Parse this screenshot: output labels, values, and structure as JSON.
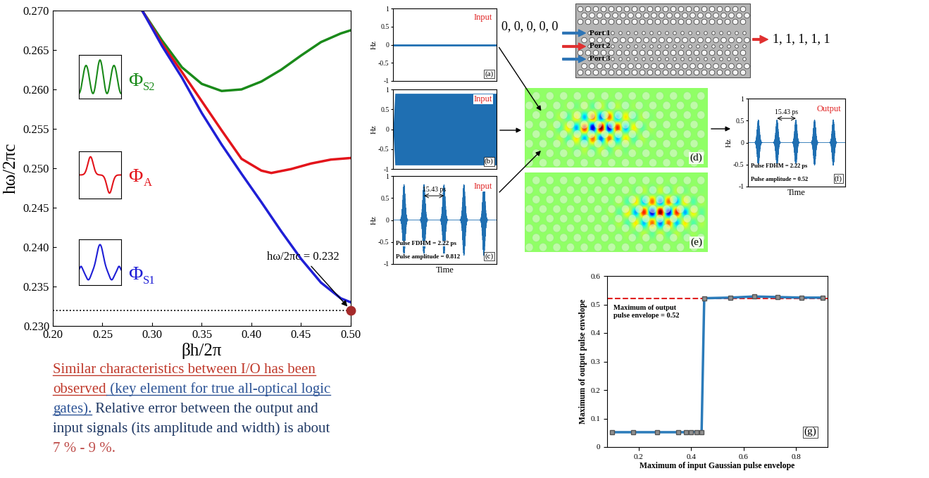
{
  "chart_data": [
    {
      "type": "line",
      "x_label": "βh/2π",
      "y_label": "hω/2πc",
      "xlim": [
        0.2,
        0.5
      ],
      "xticks": [
        {
          "value": 0.2,
          "label": "0.20"
        },
        {
          "value": 0.25,
          "label": "0.25"
        },
        {
          "value": 0.3,
          "label": "0.30"
        },
        {
          "value": 0.35,
          "label": "0.35"
        },
        {
          "value": 0.4,
          "label": "0.40"
        },
        {
          "value": 0.45,
          "label": "0.45"
        },
        {
          "value": 0.5,
          "label": "0.50"
        }
      ],
      "ylim": [
        0.23,
        0.27
      ],
      "yticks": [
        {
          "value": 0.23,
          "label": "0.230"
        },
        {
          "value": 0.235,
          "label": "0.235"
        },
        {
          "value": 0.24,
          "label": "0.240"
        },
        {
          "value": 0.245,
          "label": "0.245"
        },
        {
          "value": 0.25,
          "label": "0.250"
        },
        {
          "value": 0.255,
          "label": "0.255"
        },
        {
          "value": 0.26,
          "label": "0.260"
        },
        {
          "value": 0.265,
          "label": "0.265"
        },
        {
          "value": 0.27,
          "label": "0.270"
        }
      ],
      "series": [
        {
          "name": "ΦS2",
          "color": "#1a8a1a",
          "x": [
            0.29,
            0.31,
            0.33,
            0.35,
            0.37,
            0.39,
            0.41,
            0.43,
            0.45,
            0.47,
            0.49,
            0.5
          ],
          "values": [
            0.27,
            0.2662,
            0.2628,
            0.2607,
            0.2598,
            0.26,
            0.261,
            0.2625,
            0.2643,
            0.266,
            0.2671,
            0.2675
          ]
        },
        {
          "name": "ΦA",
          "color": "#e3141b",
          "x": [
            0.29,
            0.31,
            0.33,
            0.35,
            0.37,
            0.39,
            0.41,
            0.42,
            0.44,
            0.46,
            0.48,
            0.5
          ],
          "values": [
            0.27,
            0.2658,
            0.2622,
            0.2585,
            0.2548,
            0.2512,
            0.2497,
            0.2494,
            0.2499,
            0.2506,
            0.2511,
            0.2513
          ]
        },
        {
          "name": "ΦS1",
          "color": "#1f1fd6",
          "x": [
            0.29,
            0.31,
            0.33,
            0.35,
            0.37,
            0.39,
            0.41,
            0.43,
            0.45,
            0.47,
            0.49,
            0.5
          ],
          "values": [
            0.27,
            0.2655,
            0.2615,
            0.257,
            0.253,
            0.2493,
            0.2457,
            0.242,
            0.2385,
            0.2355,
            0.2335,
            0.233
          ]
        }
      ],
      "reference_line": {
        "y": 0.232,
        "color": "#000000",
        "line_style": "dotted"
      },
      "highlight": {
        "x": 0.5,
        "y": 0.232,
        "color": "#a52a2a",
        "annotation": "hω/2πc = 0.232"
      }
    },
    {
      "type": "line",
      "panel": "(a)",
      "label": "Input",
      "y_label": "Hz",
      "tick_labels": "y",
      "xlim": [
        0,
        80
      ],
      "ylim": [
        -1,
        1
      ],
      "yticks": [
        -1,
        -0.5,
        0,
        0.5,
        1
      ],
      "x": [
        0,
        80
      ],
      "values": [
        0,
        0
      ],
      "color": "#1f6fb2"
    },
    {
      "type": "band",
      "panel": "(b)",
      "label": "Input",
      "y_label": "Hz",
      "tick_labels": "y",
      "xlim": [
        0,
        80
      ],
      "ylim": [
        -1,
        1
      ],
      "yticks": [
        -1,
        -0.5,
        0,
        0.5,
        1
      ],
      "x": [
        0,
        1.5,
        80
      ],
      "values": [
        0,
        0.9,
        0.9
      ],
      "color": "#1f6fb2"
    },
    {
      "type": "pulses",
      "panel": "(c)",
      "label": "Input",
      "y_label": "Hz",
      "x_label": "Time",
      "tick_labels": "y",
      "xlim": [
        0,
        80
      ],
      "ylim": [
        -1,
        1
      ],
      "yticks": [
        -1,
        -0.5,
        0,
        0.5,
        1
      ],
      "pulse_centers": [
        8.5,
        23.9,
        39.4,
        54.8,
        70.2
      ],
      "pulse_amplitude": 0.812,
      "pulse_fdhm": 2.22,
      "spacing_label": "15.43 ps",
      "notes": [
        "Pulse FDHM = 2.22 ps",
        "Pulse amplitude = 0.812"
      ],
      "color": "#1f6fb2"
    },
    {
      "type": "pulses",
      "panel": "(f)",
      "label": "Output",
      "y_label": "Hz",
      "x_label": "Time",
      "tick_labels": "y",
      "xlim": [
        0,
        80
      ],
      "ylim": [
        -1,
        1
      ],
      "yticks": [
        -1,
        -0.5,
        0,
        0.5,
        1
      ],
      "pulse_centers": [
        8.5,
        23.9,
        39.4,
        54.8,
        70.2
      ],
      "pulse_amplitude": 0.52,
      "pulse_fdhm": 2.22,
      "spacing_label": "15.43 ps",
      "notes": [
        "Pulse FDHM = 2.22 ps",
        "Pulse amplitude = 0.52"
      ],
      "color": "#1f6fb2"
    },
    {
      "type": "line",
      "panel": "(g)",
      "x_label": "Maximum of input Gaussian pulse envelope",
      "y_label": "Maximum of output pulse envelope",
      "xlim": [
        0.08,
        0.92
      ],
      "xticks": [
        0.2,
        0.4,
        0.6,
        0.8
      ],
      "ylim": [
        0,
        0.6
      ],
      "yticks": [
        0,
        0.1,
        0.2,
        0.3,
        0.4,
        0.5,
        0.6
      ],
      "x": [
        0.1,
        0.18,
        0.27,
        0.35,
        0.38,
        0.4,
        0.42,
        0.44,
        0.45,
        0.55,
        0.64,
        0.73,
        0.82,
        0.9
      ],
      "values": [
        0.052,
        0.052,
        0.052,
        0.052,
        0.052,
        0.053,
        0.053,
        0.053,
        0.522,
        0.524,
        0.528,
        0.526,
        0.524,
        0.524
      ],
      "color": "#2b7bba",
      "marker": "square",
      "reference_line": {
        "y": 0.52,
        "color": "#e02020",
        "line_style": "dashed",
        "label": "Maximum of output\npulse envelope = 0.52"
      }
    }
  ],
  "diagram": {
    "input_bits": "0, 0, 0, 0, 0",
    "output_bits": "1, 1, 1, 1, 1",
    "output_color": "#e03030",
    "ports": [
      {
        "label": "Port 1",
        "color": "#2e75b6"
      },
      {
        "label": "Port 2",
        "color": "#e03030"
      },
      {
        "label": "Port 3",
        "color": "#2e75b6"
      }
    ],
    "field_snapshots": [
      "(d)",
      "(e)"
    ]
  },
  "caption": {
    "lines": [
      [
        {
          "text": "Similar characteristics between I/O has been",
          "color": "#c0392b",
          "underline": true
        }
      ],
      [
        {
          "text": "observed",
          "color": "#c0392b",
          "underline": true
        },
        {
          "text": " (key element for true all-optical logic",
          "color": "#2e5597",
          "underline": true
        }
      ],
      [
        {
          "text": "gates).",
          "color": "#2e5597",
          "underline": true
        },
        {
          "text": " Relative error between the output and",
          "color": "#1f3864",
          "underline": false
        }
      ],
      [
        {
          "text": "input signals (its amplitude and width) is about",
          "color": "#1f3864",
          "underline": false
        }
      ],
      [
        {
          "text": "7 % - 9 %.",
          "color": "#c0504d",
          "underline": false
        }
      ]
    ]
  }
}
